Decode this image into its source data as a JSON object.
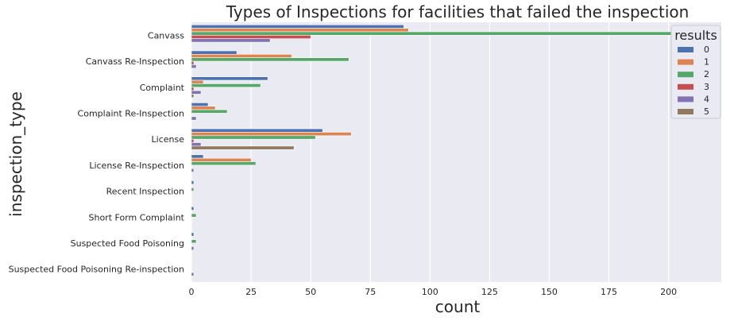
{
  "chart_data": {
    "type": "bar",
    "orientation": "horizontal",
    "title": "Types of Inspections for facilities that failed the inspection",
    "xlabel": "count",
    "ylabel": "inspection_type",
    "xlim": [
      0,
      222
    ],
    "xticks": [
      0,
      25,
      50,
      75,
      100,
      125,
      150,
      175,
      200
    ],
    "grid": true,
    "legend": {
      "title": "results",
      "placement": "top-right"
    },
    "categories": [
      "Canvass",
      "Canvass Re-Inspection",
      "Complaint",
      "Complaint Re-Inspection",
      "License",
      "License Re-Inspection",
      "Recent Inspection",
      "Short Form Complaint",
      "Suspected Food Poisoning",
      "Suspected Food Poisoning Re-inspection"
    ],
    "series": [
      {
        "name": "0",
        "color": "#4c72b0",
        "values": [
          89,
          19,
          32,
          7,
          55,
          5,
          1,
          1,
          1,
          0
        ]
      },
      {
        "name": "1",
        "color": "#dd8452",
        "values": [
          91,
          42,
          5,
          10,
          67,
          25,
          0,
          0,
          0,
          0
        ]
      },
      {
        "name": "2",
        "color": "#55a868",
        "values": [
          222,
          66,
          29,
          15,
          52,
          27,
          1,
          2,
          2,
          0
        ]
      },
      {
        "name": "3",
        "color": "#c44e52",
        "values": [
          50,
          1,
          1,
          0,
          1,
          0,
          0,
          0,
          0,
          0
        ]
      },
      {
        "name": "4",
        "color": "#8172b3",
        "values": [
          33,
          2,
          4,
          2,
          4,
          1,
          0,
          0,
          1,
          1
        ]
      },
      {
        "name": "5",
        "color": "#937860",
        "values": [
          0,
          0,
          1,
          0,
          43,
          0,
          0,
          0,
          0,
          0
        ]
      }
    ]
  }
}
